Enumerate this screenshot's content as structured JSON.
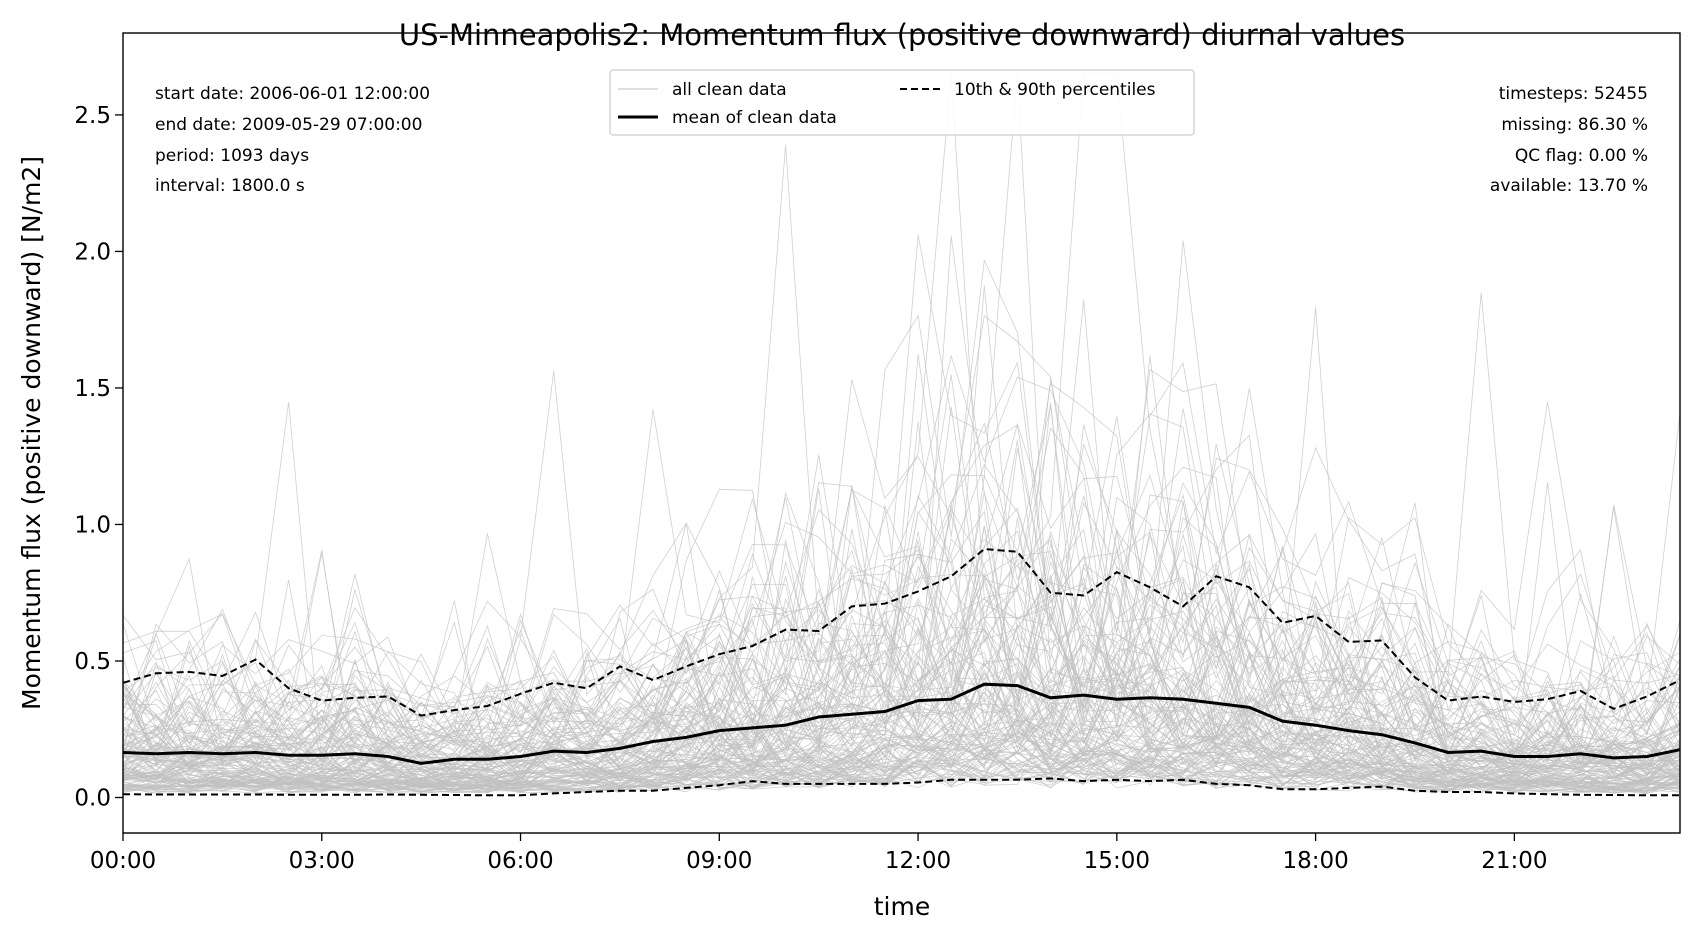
{
  "chart_data": {
    "type": "line",
    "title": "US-Minneapolis2: Momentum flux (positive downward) diurnal values",
    "xlabel": "time",
    "ylabel": "Momentum flux (positive downward) [N/m2]",
    "xlim_hours": [
      0,
      23.5
    ],
    "ylim": [
      -0.13,
      2.8
    ],
    "xticks": [
      {
        "hour": 0,
        "label": "00:00"
      },
      {
        "hour": 3,
        "label": "03:00"
      },
      {
        "hour": 6,
        "label": "06:00"
      },
      {
        "hour": 9,
        "label": "09:00"
      },
      {
        "hour": 12,
        "label": "12:00"
      },
      {
        "hour": 15,
        "label": "15:00"
      },
      {
        "hour": 18,
        "label": "18:00"
      },
      {
        "hour": 21,
        "label": "21:00"
      }
    ],
    "yticks": [
      {
        "value": 0.0,
        "label": "0.0"
      },
      {
        "value": 0.5,
        "label": "0.5"
      },
      {
        "value": 1.0,
        "label": "1.0"
      },
      {
        "value": 1.5,
        "label": "1.5"
      },
      {
        "value": 2.0,
        "label": "2.0"
      },
      {
        "value": 2.5,
        "label": "2.5"
      }
    ],
    "grid": false,
    "legend_position": "top-center",
    "legend": {
      "all": "all clean data",
      "mean": "mean of clean data",
      "pct": "10th & 90th percentiles"
    },
    "info_left": [
      "start date: 2006-06-01 12:00:00",
      "end date: 2009-05-29 07:00:00",
      "period: 1093 days",
      "interval: 1800.0 s"
    ],
    "info_right": [
      "timesteps: 52455",
      "missing: 86.30 %",
      "QC flag: 0.00 %",
      "available: 13.70 %"
    ],
    "colors": {
      "background_lines": "#c0c0c0",
      "mean": "#000000",
      "percentiles": "#000000"
    },
    "series": [
      {
        "name": "mean of clean data",
        "x": [
          0,
          0.5,
          1,
          1.5,
          2,
          2.5,
          3,
          3.5,
          4,
          4.5,
          5,
          5.5,
          6,
          6.5,
          7,
          7.5,
          8,
          8.5,
          9,
          9.5,
          10,
          10.5,
          11,
          11.5,
          12,
          12.5,
          13,
          13.5,
          14,
          14.5,
          15,
          15.5,
          16,
          16.5,
          17,
          17.5,
          18,
          18.5,
          19,
          19.5,
          20,
          20.5,
          21,
          21.5,
          22,
          22.5,
          23,
          23.5
        ],
        "values": [
          0.165,
          0.16,
          0.165,
          0.16,
          0.165,
          0.155,
          0.155,
          0.16,
          0.15,
          0.125,
          0.14,
          0.14,
          0.15,
          0.17,
          0.165,
          0.18,
          0.205,
          0.22,
          0.245,
          0.255,
          0.265,
          0.295,
          0.305,
          0.315,
          0.355,
          0.36,
          0.415,
          0.41,
          0.365,
          0.375,
          0.36,
          0.365,
          0.36,
          0.345,
          0.33,
          0.28,
          0.265,
          0.245,
          0.23,
          0.2,
          0.165,
          0.17,
          0.15,
          0.15,
          0.16,
          0.145,
          0.15,
          0.175
        ]
      },
      {
        "name": "90th percentile",
        "x": [
          0,
          0.5,
          1,
          1.5,
          2,
          2.5,
          3,
          3.5,
          4,
          4.5,
          5,
          5.5,
          6,
          6.5,
          7,
          7.5,
          8,
          8.5,
          9,
          9.5,
          10,
          10.5,
          11,
          11.5,
          12,
          12.5,
          13,
          13.5,
          14,
          14.5,
          15,
          15.5,
          16,
          16.5,
          17,
          17.5,
          18,
          18.5,
          19,
          19.5,
          20,
          20.5,
          21,
          21.5,
          22,
          22.5,
          23,
          23.5
        ],
        "values": [
          0.42,
          0.455,
          0.46,
          0.445,
          0.505,
          0.4,
          0.355,
          0.365,
          0.37,
          0.3,
          0.32,
          0.335,
          0.38,
          0.42,
          0.4,
          0.48,
          0.43,
          0.48,
          0.525,
          0.555,
          0.615,
          0.61,
          0.7,
          0.71,
          0.755,
          0.81,
          0.91,
          0.9,
          0.75,
          0.74,
          0.825,
          0.77,
          0.7,
          0.81,
          0.77,
          0.64,
          0.665,
          0.57,
          0.575,
          0.44,
          0.355,
          0.37,
          0.35,
          0.36,
          0.39,
          0.325,
          0.37,
          0.43
        ]
      },
      {
        "name": "10th percentile",
        "x": [
          0,
          0.5,
          1,
          1.5,
          2,
          2.5,
          3,
          3.5,
          4,
          4.5,
          5,
          5.5,
          6,
          6.5,
          7,
          7.5,
          8,
          8.5,
          9,
          9.5,
          10,
          10.5,
          11,
          11.5,
          12,
          12.5,
          13,
          13.5,
          14,
          14.5,
          15,
          15.5,
          16,
          16.5,
          17,
          17.5,
          18,
          18.5,
          19,
          19.5,
          20,
          20.5,
          21,
          21.5,
          22,
          22.5,
          23,
          23.5
        ],
        "values": [
          0.012,
          0.011,
          0.011,
          0.011,
          0.011,
          0.01,
          0.01,
          0.01,
          0.011,
          0.01,
          0.009,
          0.008,
          0.008,
          0.015,
          0.02,
          0.025,
          0.025,
          0.035,
          0.045,
          0.06,
          0.05,
          0.05,
          0.05,
          0.05,
          0.055,
          0.065,
          0.065,
          0.065,
          0.07,
          0.06,
          0.065,
          0.06,
          0.065,
          0.05,
          0.045,
          0.03,
          0.03,
          0.035,
          0.04,
          0.025,
          0.02,
          0.02,
          0.015,
          0.012,
          0.01,
          0.009,
          0.008,
          0.008
        ]
      }
    ]
  }
}
